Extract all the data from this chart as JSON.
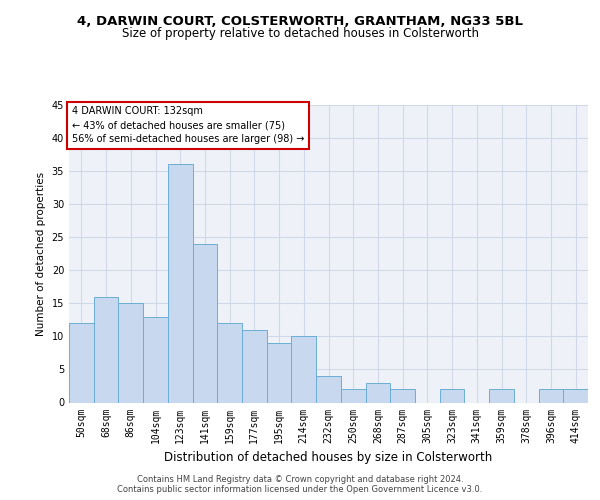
{
  "title_line1": "4, DARWIN COURT, COLSTERWORTH, GRANTHAM, NG33 5BL",
  "title_line2": "Size of property relative to detached houses in Colsterworth",
  "xlabel": "Distribution of detached houses by size in Colsterworth",
  "ylabel": "Number of detached properties",
  "categories": [
    "50sqm",
    "68sqm",
    "86sqm",
    "104sqm",
    "123sqm",
    "141sqm",
    "159sqm",
    "177sqm",
    "195sqm",
    "214sqm",
    "232sqm",
    "250sqm",
    "268sqm",
    "287sqm",
    "305sqm",
    "323sqm",
    "341sqm",
    "359sqm",
    "378sqm",
    "396sqm",
    "414sqm"
  ],
  "values": [
    12,
    16,
    15,
    13,
    36,
    24,
    12,
    11,
    9,
    10,
    4,
    2,
    3,
    2,
    0,
    2,
    0,
    2,
    0,
    2,
    2
  ],
  "bar_color": "#c8d9ef",
  "bar_edge_color": "#6baed6",
  "grid_color": "#d0d8e8",
  "bg_color": "#eef2f8",
  "annotation_text": "4 DARWIN COURT: 132sqm\n← 43% of detached houses are smaller (75)\n56% of semi-detached houses are larger (98) →",
  "annotation_box_color": "#ffffff",
  "annotation_box_edge": "#cc0000",
  "footer": "Contains HM Land Registry data © Crown copyright and database right 2024.\nContains public sector information licensed under the Open Government Licence v3.0.",
  "ylim": [
    0,
    45
  ],
  "yticks": [
    0,
    5,
    10,
    15,
    20,
    25,
    30,
    35,
    40,
    45
  ],
  "title1_fontsize": 9.5,
  "title2_fontsize": 8.5,
  "xlabel_fontsize": 8.5,
  "ylabel_fontsize": 7.5,
  "tick_fontsize": 7,
  "ann_fontsize": 7,
  "footer_fontsize": 6
}
